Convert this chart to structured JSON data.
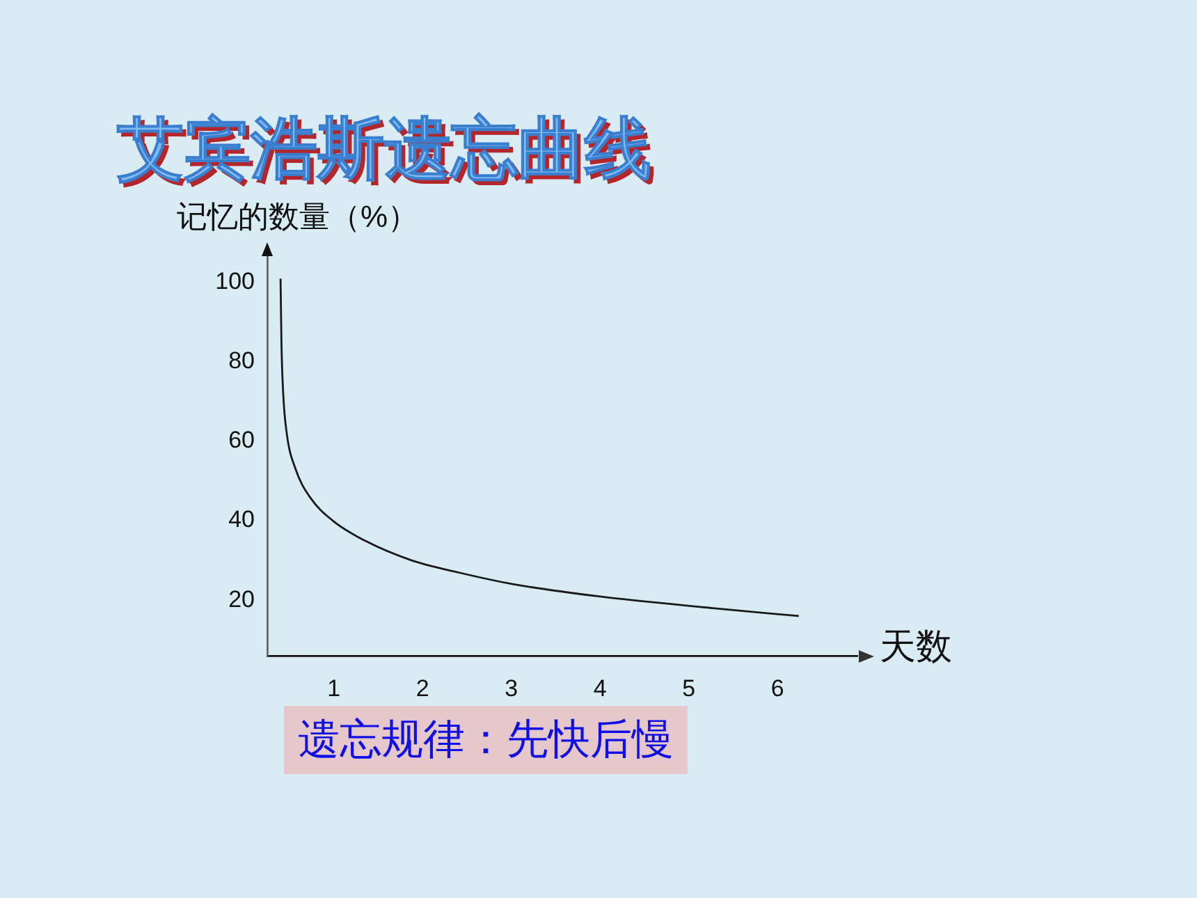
{
  "chart_data": {
    "type": "line",
    "title": "艾宾浩斯遗忘曲线",
    "xlabel": "天数",
    "ylabel": "记忆的数量（%）",
    "annotations": [
      "遗忘规律：先快后慢"
    ],
    "x": [
      0.4,
      0.41,
      0.43,
      0.47,
      0.57,
      0.73,
      0.99,
      1.35,
      1.88,
      2.4,
      3.03,
      3.97,
      5.27,
      6.24
    ],
    "series": [
      {
        "color": "#1a1a1a",
        "values": [
          101,
          85,
          72,
          62,
          53,
          46,
          40,
          35,
          30,
          27,
          24,
          21,
          18,
          16
        ]
      }
    ],
    "xlim": [
      0.25,
      6.9
    ],
    "xticks": [
      1,
      2,
      3,
      4,
      5,
      6
    ],
    "ylim": [
      6,
      107
    ],
    "yticks": [
      20,
      40,
      60,
      80,
      100
    ],
    "grid": false,
    "legend": false
  }
}
